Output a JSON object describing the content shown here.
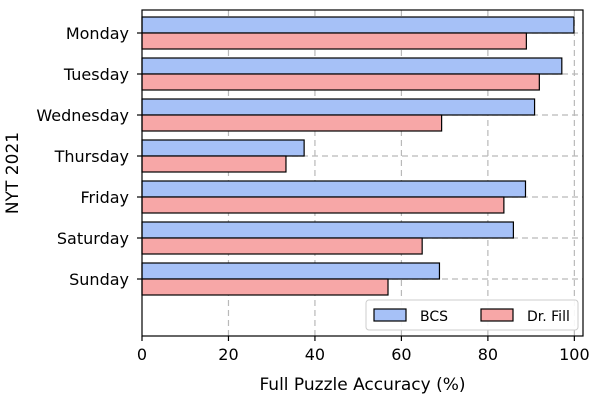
{
  "chart_data": {
    "type": "bar",
    "orientation": "horizontal",
    "categories": [
      "Monday",
      "Tuesday",
      "Wednesday",
      "Thursday",
      "Friday",
      "Saturday",
      "Sunday"
    ],
    "series": [
      {
        "name": "BCS",
        "color": "#a6c1f7",
        "values": [
          99.9,
          97.1,
          90.8,
          37.5,
          88.7,
          85.9,
          68.8
        ]
      },
      {
        "name": "Dr. Fill",
        "color": "#f7a7a7",
        "values": [
          88.9,
          91.9,
          69.3,
          33.3,
          83.7,
          64.8,
          56.9
        ]
      }
    ],
    "xlabel": "Full Puzzle Accuracy (%)",
    "ylabel": "NYT 2021",
    "xlim": [
      0,
      102
    ],
    "xticks": [
      0,
      20,
      40,
      60,
      80,
      100
    ],
    "grid": true,
    "legend_position": "bottom-right"
  }
}
